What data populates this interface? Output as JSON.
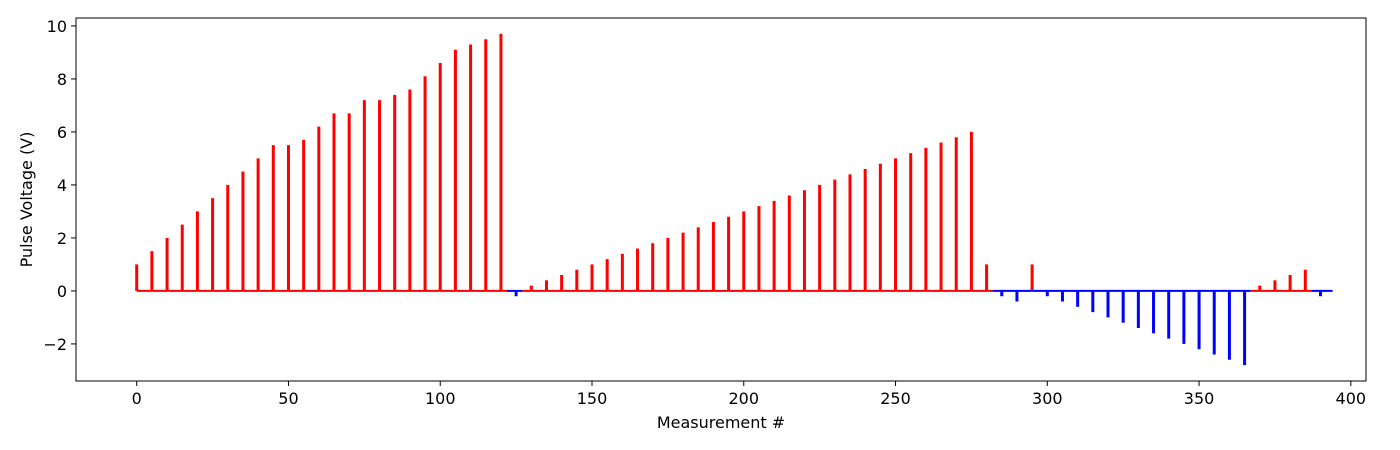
{
  "chart_data": {
    "type": "bar",
    "title": "",
    "xlabel": "Measurement #",
    "ylabel": "Pulse Voltage (V)",
    "xlim": [
      -20,
      405
    ],
    "ylim": [
      -3.4,
      10.3
    ],
    "xticks": [
      0,
      50,
      100,
      150,
      200,
      250,
      300,
      350,
      400
    ],
    "yticks": [
      -2,
      0,
      2,
      4,
      6,
      8,
      10
    ],
    "grid": false,
    "colors": {
      "positive": "#ff0000",
      "negative": "#0000ff"
    },
    "baseline": {
      "x_start": 0,
      "x_end": 394,
      "positive_segments": [
        [
          0,
          122
        ],
        [
          127,
          282
        ],
        [
          367,
          387
        ]
      ],
      "negative_segments": [
        [
          122,
          127
        ],
        [
          282,
          367
        ],
        [
          387,
          394
        ]
      ]
    },
    "pulses": [
      {
        "x": 0,
        "y": 1.0
      },
      {
        "x": 5,
        "y": 1.5
      },
      {
        "x": 10,
        "y": 2.0
      },
      {
        "x": 15,
        "y": 2.5
      },
      {
        "x": 20,
        "y": 3.0
      },
      {
        "x": 25,
        "y": 3.5
      },
      {
        "x": 30,
        "y": 4.0
      },
      {
        "x": 35,
        "y": 4.5
      },
      {
        "x": 40,
        "y": 5.0
      },
      {
        "x": 45,
        "y": 5.5
      },
      {
        "x": 50,
        "y": 5.5
      },
      {
        "x": 55,
        "y": 5.7
      },
      {
        "x": 60,
        "y": 6.2
      },
      {
        "x": 65,
        "y": 6.7
      },
      {
        "x": 70,
        "y": 6.7
      },
      {
        "x": 75,
        "y": 7.2
      },
      {
        "x": 80,
        "y": 7.2
      },
      {
        "x": 85,
        "y": 7.4
      },
      {
        "x": 90,
        "y": 7.6
      },
      {
        "x": 95,
        "y": 8.1
      },
      {
        "x": 100,
        "y": 8.6
      },
      {
        "x": 105,
        "y": 9.1
      },
      {
        "x": 110,
        "y": 9.3
      },
      {
        "x": 115,
        "y": 9.5
      },
      {
        "x": 120,
        "y": 9.7
      },
      {
        "x": 125,
        "y": -0.2
      },
      {
        "x": 130,
        "y": 0.2
      },
      {
        "x": 135,
        "y": 0.4
      },
      {
        "x": 140,
        "y": 0.6
      },
      {
        "x": 145,
        "y": 0.8
      },
      {
        "x": 150,
        "y": 1.0
      },
      {
        "x": 155,
        "y": 1.2
      },
      {
        "x": 160,
        "y": 1.4
      },
      {
        "x": 165,
        "y": 1.6
      },
      {
        "x": 170,
        "y": 1.8
      },
      {
        "x": 175,
        "y": 2.0
      },
      {
        "x": 180,
        "y": 2.2
      },
      {
        "x": 185,
        "y": 2.4
      },
      {
        "x": 190,
        "y": 2.6
      },
      {
        "x": 195,
        "y": 2.8
      },
      {
        "x": 200,
        "y": 3.0
      },
      {
        "x": 205,
        "y": 3.2
      },
      {
        "x": 210,
        "y": 3.4
      },
      {
        "x": 215,
        "y": 3.6
      },
      {
        "x": 220,
        "y": 3.8
      },
      {
        "x": 225,
        "y": 4.0
      },
      {
        "x": 230,
        "y": 4.2
      },
      {
        "x": 235,
        "y": 4.4
      },
      {
        "x": 240,
        "y": 4.6
      },
      {
        "x": 245,
        "y": 4.8
      },
      {
        "x": 250,
        "y": 5.0
      },
      {
        "x": 255,
        "y": 5.2
      },
      {
        "x": 260,
        "y": 5.4
      },
      {
        "x": 265,
        "y": 5.6
      },
      {
        "x": 270,
        "y": 5.8
      },
      {
        "x": 275,
        "y": 6.0
      },
      {
        "x": 280,
        "y": 1.0
      },
      {
        "x": 285,
        "y": -0.2
      },
      {
        "x": 290,
        "y": -0.4
      },
      {
        "x": 295,
        "y": 1.0
      },
      {
        "x": 300,
        "y": -0.2
      },
      {
        "x": 305,
        "y": -0.4
      },
      {
        "x": 310,
        "y": -0.6
      },
      {
        "x": 315,
        "y": -0.8
      },
      {
        "x": 320,
        "y": -1.0
      },
      {
        "x": 325,
        "y": -1.2
      },
      {
        "x": 330,
        "y": -1.4
      },
      {
        "x": 335,
        "y": -1.6
      },
      {
        "x": 340,
        "y": -1.8
      },
      {
        "x": 345,
        "y": -2.0
      },
      {
        "x": 350,
        "y": -2.2
      },
      {
        "x": 355,
        "y": -2.4
      },
      {
        "x": 360,
        "y": -2.6
      },
      {
        "x": 365,
        "y": -2.8
      },
      {
        "x": 370,
        "y": 0.2
      },
      {
        "x": 375,
        "y": 0.4
      },
      {
        "x": 380,
        "y": 0.6
      },
      {
        "x": 385,
        "y": 0.8
      },
      {
        "x": 390,
        "y": -0.2
      }
    ]
  }
}
